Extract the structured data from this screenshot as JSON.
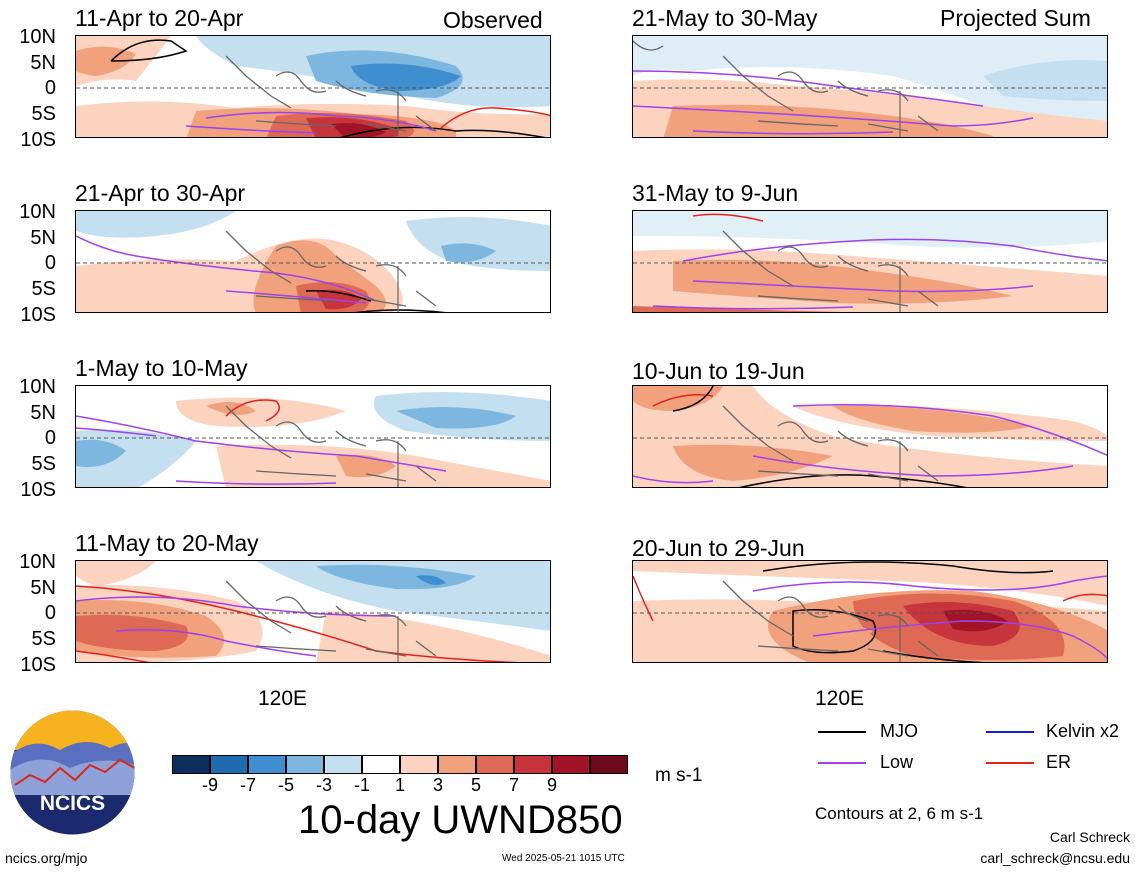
{
  "panels": [
    {
      "title": "11-Apr to 20-Apr",
      "tag": "Observed"
    },
    {
      "title": "21-May to 30-May",
      "tag": "Projected Sum"
    },
    {
      "title": "21-Apr to 30-Apr",
      "tag": ""
    },
    {
      "title": "31-May to 9-Jun",
      "tag": ""
    },
    {
      "title": "1-May to 10-May",
      "tag": ""
    },
    {
      "title": "10-Jun to 19-Jun",
      "tag": ""
    },
    {
      "title": "11-May to 20-May",
      "tag": ""
    },
    {
      "title": "20-Jun to 29-Jun",
      "tag": ""
    }
  ],
  "lat_ticks": [
    "10N",
    "5N",
    "0",
    "5S",
    "10S"
  ],
  "lon_tick": "120E",
  "colorbar": {
    "labels": [
      "-9",
      "-7",
      "-5",
      "-3",
      "-1",
      "1",
      "3",
      "5",
      "7",
      "9"
    ],
    "colors": [
      "#0d2f5e",
      "#1f6bb0",
      "#3f8fd0",
      "#7db6de",
      "#c4dff0",
      "#ffffff",
      "#fbd3bf",
      "#f2a17d",
      "#de6a55",
      "#c7343b",
      "#a11427",
      "#6e0a1e"
    ],
    "units": "m s-1"
  },
  "main_title": "10-day UWND850",
  "legend": {
    "items": [
      {
        "label": "MJO",
        "color": "#000000"
      },
      {
        "label": "Kelvin x2",
        "color": "#1a1ad8"
      },
      {
        "label": "Low",
        "color": "#a040ee"
      },
      {
        "label": "ER",
        "color": "#e8201c"
      }
    ],
    "note": "Contours at 2, 6 m s-1"
  },
  "logo_text": "NCICS",
  "footer": {
    "url": "ncics.org/mjo",
    "timestamp": "Wed 2025-05-21 1015 UTC",
    "author": "Carl Schreck",
    "email": "carl_schreck@ncsu.edu"
  }
}
